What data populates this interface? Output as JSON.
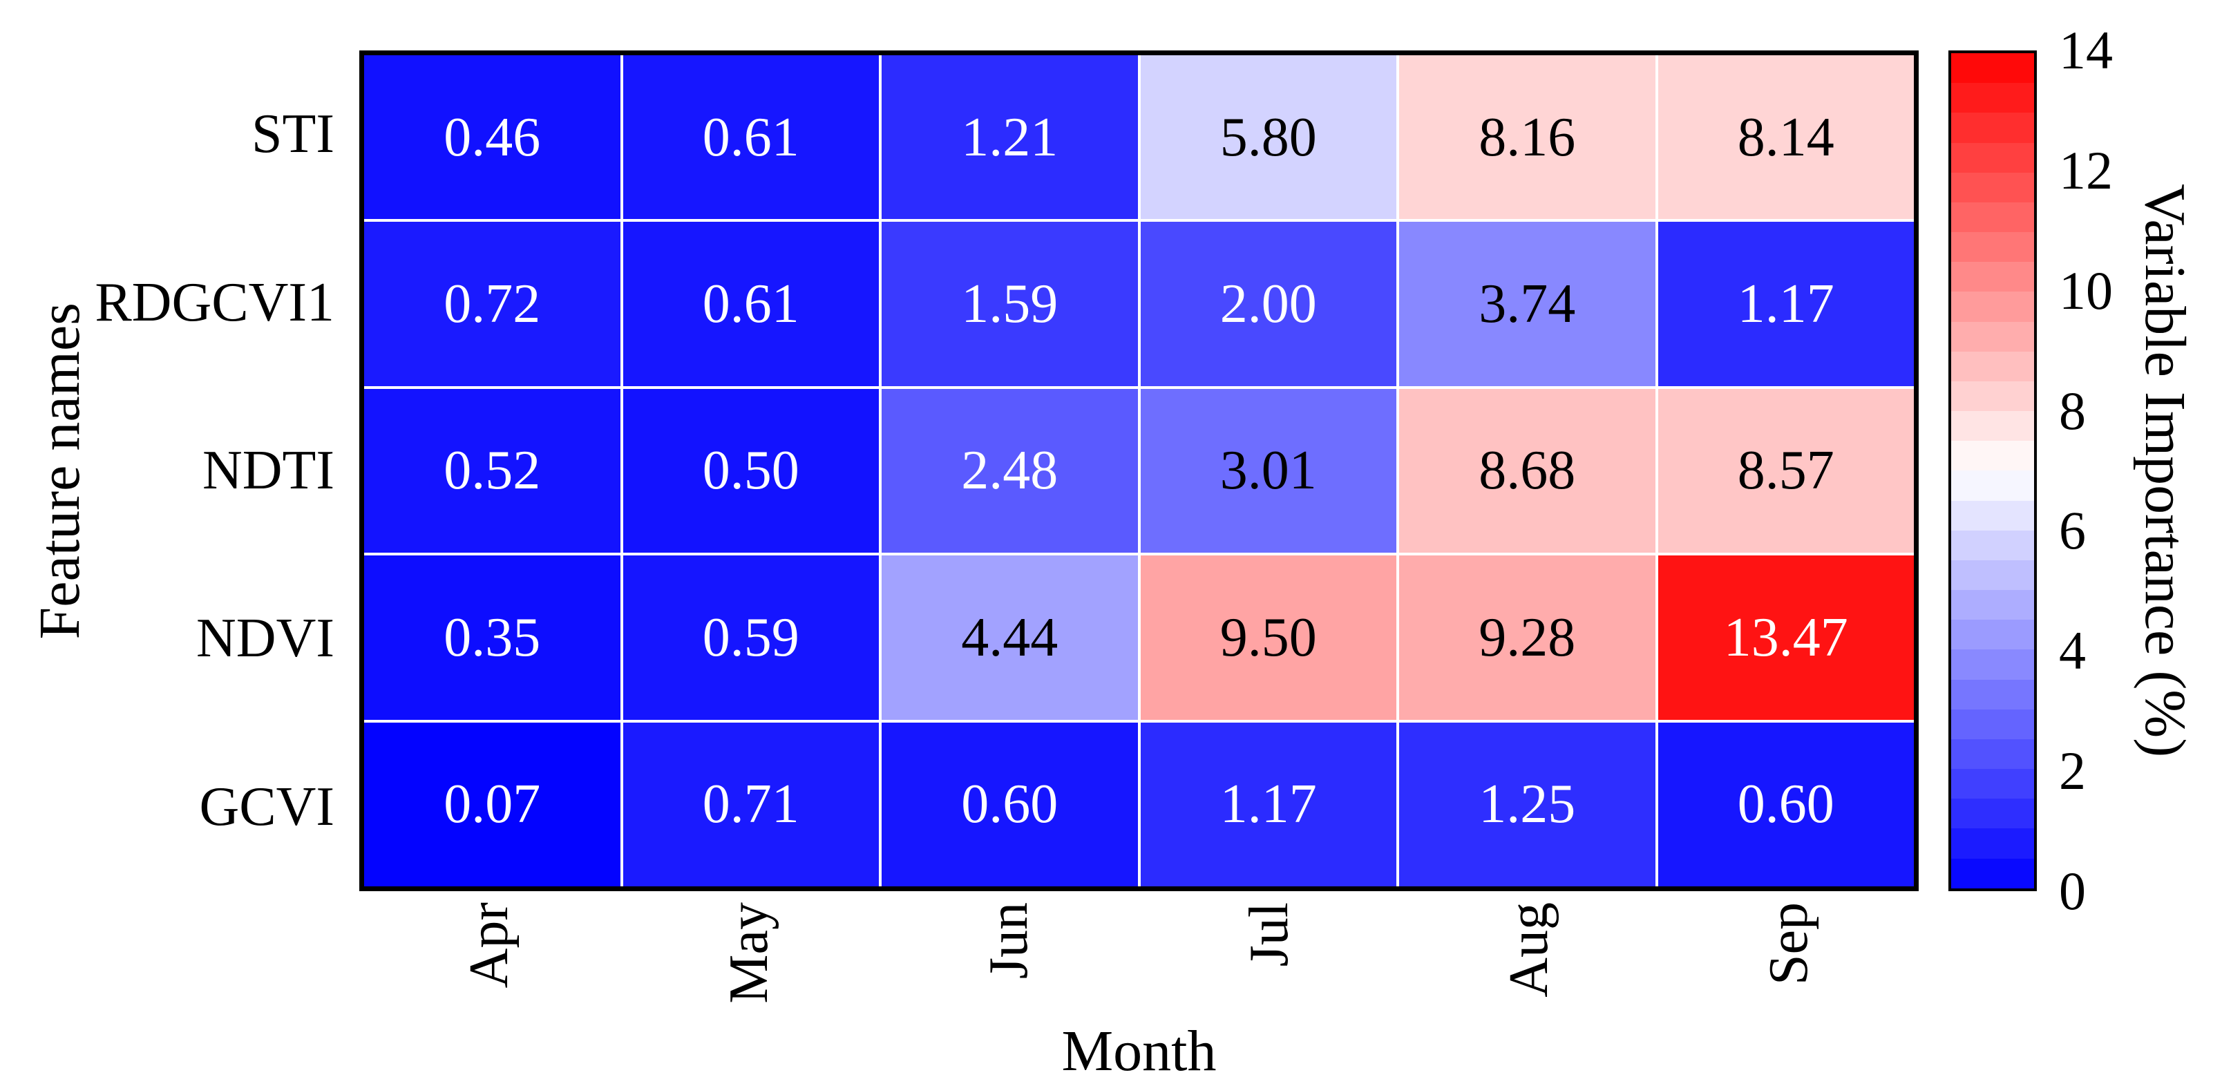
{
  "chart_data": {
    "type": "heatmap",
    "title": "",
    "xlabel": "Month",
    "ylabel": "Feature names",
    "colorbar_label": "Variable Importance (%)",
    "columns": [
      "Apr",
      "May",
      "Jun",
      "Jul",
      "Aug",
      "Sep"
    ],
    "rows": [
      "STI",
      "RDGCVI1",
      "NDTI",
      "NDVI",
      "GCVI"
    ],
    "values": [
      [
        0.46,
        0.61,
        1.21,
        5.8,
        8.16,
        8.14
      ],
      [
        0.72,
        0.61,
        1.59,
        2.0,
        3.74,
        1.17
      ],
      [
        0.52,
        0.5,
        2.48,
        3.01,
        8.68,
        8.57
      ],
      [
        0.35,
        0.59,
        4.44,
        9.5,
        9.28,
        13.47
      ],
      [
        0.07,
        0.71,
        0.6,
        1.17,
        1.25,
        0.6
      ]
    ],
    "value_format_decimals": 2,
    "vmin": 0,
    "vmax": 14,
    "colormap": "bwr",
    "colorbar_ticks": [
      0,
      2,
      4,
      6,
      8,
      10,
      12,
      14
    ],
    "colorbar_steps": 28,
    "colors": {
      "low": "#0000ff",
      "mid": "#ffffff",
      "high": "#ff0000",
      "cell_text_light": "#ffffff",
      "cell_text_dark": "#000000",
      "border": "#000000",
      "gridline": "#ffffff"
    },
    "legend_position": "right",
    "grid": true
  }
}
